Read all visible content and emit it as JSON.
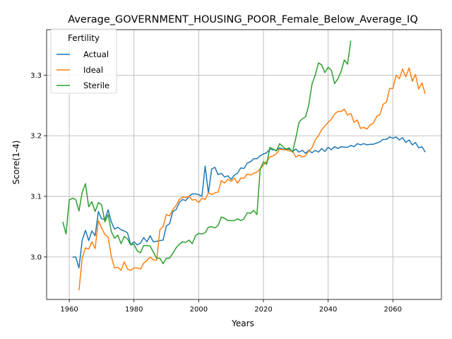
{
  "chart_data": {
    "type": "line",
    "title": "Average_GOVERNMENT_HOUSING_POOR_Female_Below_Average_IQ",
    "xlabel": "Years",
    "ylabel": "Score(1-4)",
    "xlim": [
      1953,
      2075
    ],
    "ylim": [
      2.93,
      3.375
    ],
    "xticks": [
      1960,
      1980,
      2000,
      2020,
      2040,
      2060
    ],
    "yticks": [
      3.0,
      3.1,
      3.2,
      3.3
    ],
    "xtick_labels": [
      "1960",
      "1980",
      "2000",
      "2020",
      "2040",
      "2060"
    ],
    "ytick_labels": [
      "3.0",
      "3.1",
      "3.2",
      "3.3"
    ],
    "grid": true,
    "legend": {
      "title": "Fertility",
      "placement": "top-left"
    },
    "series": [
      {
        "name": "Actual",
        "color": "#1f77b4",
        "points": [
          [
            1961,
            3.0
          ],
          [
            1962,
            3.0
          ],
          [
            1963,
            2.982
          ],
          [
            1964,
            3.028
          ],
          [
            1965,
            3.044
          ],
          [
            1966,
            3.027
          ],
          [
            1967,
            3.043
          ],
          [
            1968,
            3.035
          ],
          [
            1969,
            3.075
          ],
          [
            1970,
            3.063
          ],
          [
            1971,
            3.062
          ],
          [
            1972,
            3.078
          ],
          [
            1973,
            3.058
          ],
          [
            1974,
            3.046
          ],
          [
            1975,
            3.049
          ],
          [
            1976,
            3.045
          ],
          [
            1977,
            3.043
          ],
          [
            1978,
            3.04
          ],
          [
            1979,
            3.02
          ],
          [
            1980,
            3.025
          ],
          [
            1981,
            3.02
          ],
          [
            1982,
            3.023
          ],
          [
            1983,
            3.032
          ],
          [
            1984,
            3.025
          ],
          [
            1985,
            3.035
          ],
          [
            1986,
            3.025
          ],
          [
            1987,
            3.026
          ],
          [
            1988,
            3.027
          ],
          [
            1989,
            3.028
          ],
          [
            1990,
            3.051
          ],
          [
            1991,
            3.055
          ],
          [
            1992,
            3.075
          ],
          [
            1993,
            3.078
          ],
          [
            1994,
            3.09
          ],
          [
            1995,
            3.095
          ],
          [
            1996,
            3.093
          ],
          [
            1997,
            3.1
          ],
          [
            1998,
            3.104
          ],
          [
            1999,
            3.104
          ],
          [
            2000,
            3.103
          ],
          [
            2001,
            3.1
          ],
          [
            2002,
            3.15
          ],
          [
            2003,
            3.105
          ],
          [
            2004,
            3.145
          ],
          [
            2005,
            3.148
          ],
          [
            2006,
            3.136
          ],
          [
            2007,
            3.138
          ],
          [
            2008,
            3.132
          ],
          [
            2009,
            3.134
          ],
          [
            2010,
            3.128
          ],
          [
            2011,
            3.135
          ],
          [
            2012,
            3.138
          ],
          [
            2013,
            3.147
          ],
          [
            2014,
            3.146
          ],
          [
            2015,
            3.155
          ],
          [
            2016,
            3.157
          ],
          [
            2017,
            3.162
          ],
          [
            2018,
            3.162
          ],
          [
            2019,
            3.167
          ],
          [
            2020,
            3.17
          ],
          [
            2021,
            3.172
          ],
          [
            2022,
            3.178
          ],
          [
            2023,
            3.177
          ],
          [
            2024,
            3.176
          ],
          [
            2025,
            3.18
          ],
          [
            2026,
            3.178
          ],
          [
            2027,
            3.178
          ],
          [
            2028,
            3.178
          ],
          [
            2029,
            3.174
          ],
          [
            2030,
            3.178
          ],
          [
            2031,
            3.173
          ],
          [
            2032,
            3.176
          ],
          [
            2033,
            3.171
          ],
          [
            2034,
            3.176
          ],
          [
            2035,
            3.172
          ],
          [
            2036,
            3.176
          ],
          [
            2037,
            3.173
          ],
          [
            2038,
            3.179
          ],
          [
            2039,
            3.174
          ],
          [
            2040,
            3.181
          ],
          [
            2041,
            3.177
          ],
          [
            2042,
            3.182
          ],
          [
            2043,
            3.179
          ],
          [
            2044,
            3.182
          ],
          [
            2045,
            3.181
          ],
          [
            2046,
            3.181
          ],
          [
            2047,
            3.184
          ],
          [
            2048,
            3.182
          ],
          [
            2049,
            3.187
          ],
          [
            2050,
            3.185
          ],
          [
            2051,
            3.187
          ],
          [
            2052,
            3.185
          ],
          [
            2053,
            3.186
          ],
          [
            2054,
            3.186
          ],
          [
            2055,
            3.188
          ],
          [
            2056,
            3.19
          ],
          [
            2057,
            3.194
          ],
          [
            2058,
            3.194
          ],
          [
            2059,
            3.198
          ],
          [
            2060,
            3.196
          ],
          [
            2061,
            3.198
          ],
          [
            2062,
            3.193
          ],
          [
            2063,
            3.197
          ],
          [
            2064,
            3.189
          ],
          [
            2065,
            3.193
          ],
          [
            2066,
            3.185
          ],
          [
            2067,
            3.189
          ],
          [
            2068,
            3.18
          ],
          [
            2069,
            3.182
          ],
          [
            2070,
            3.173
          ]
        ]
      },
      {
        "name": "Ideal",
        "color": "#ff7f0e",
        "points": [
          [
            1963,
            2.945
          ],
          [
            1964,
            2.998
          ],
          [
            1965,
            3.015
          ],
          [
            1966,
            3.013
          ],
          [
            1967,
            3.025
          ],
          [
            1968,
            3.014
          ],
          [
            1969,
            3.06
          ],
          [
            1970,
            3.048
          ],
          [
            1971,
            3.037
          ],
          [
            1972,
            3.033
          ],
          [
            1973,
            3.001
          ],
          [
            1974,
            2.982
          ],
          [
            1975,
            2.983
          ],
          [
            1976,
            2.978
          ],
          [
            1977,
            2.992
          ],
          [
            1978,
            2.98
          ],
          [
            1979,
            2.978
          ],
          [
            1980,
            2.982
          ],
          [
            1981,
            2.982
          ],
          [
            1982,
            2.98
          ],
          [
            1983,
            2.99
          ],
          [
            1984,
            2.994
          ],
          [
            1985,
            3.0
          ],
          [
            1986,
            2.995
          ],
          [
            1987,
            2.995
          ],
          [
            1988,
            3.045
          ],
          [
            1989,
            3.05
          ],
          [
            1990,
            3.07
          ],
          [
            1991,
            3.068
          ],
          [
            1992,
            3.078
          ],
          [
            1993,
            3.085
          ],
          [
            1994,
            3.095
          ],
          [
            1995,
            3.099
          ],
          [
            1996,
            3.098
          ],
          [
            1997,
            3.1
          ],
          [
            1998,
            3.094
          ],
          [
            1999,
            3.095
          ],
          [
            2000,
            3.09
          ],
          [
            2001,
            3.097
          ],
          [
            2002,
            3.095
          ],
          [
            2003,
            3.106
          ],
          [
            2004,
            3.103
          ],
          [
            2005,
            3.106
          ],
          [
            2006,
            3.107
          ],
          [
            2007,
            3.126
          ],
          [
            2008,
            3.122
          ],
          [
            2009,
            3.128
          ],
          [
            2010,
            3.125
          ],
          [
            2011,
            3.13
          ],
          [
            2012,
            3.122
          ],
          [
            2013,
            3.13
          ],
          [
            2014,
            3.13
          ],
          [
            2015,
            3.137
          ],
          [
            2016,
            3.135
          ],
          [
            2017,
            3.138
          ],
          [
            2018,
            3.14
          ],
          [
            2019,
            3.145
          ],
          [
            2020,
            3.152
          ],
          [
            2021,
            3.158
          ],
          [
            2022,
            3.165
          ],
          [
            2023,
            3.167
          ],
          [
            2024,
            3.17
          ],
          [
            2025,
            3.178
          ],
          [
            2026,
            3.177
          ],
          [
            2027,
            3.177
          ],
          [
            2028,
            3.175
          ],
          [
            2029,
            3.175
          ],
          [
            2030,
            3.165
          ],
          [
            2031,
            3.168
          ],
          [
            2032,
            3.165
          ],
          [
            2033,
            3.167
          ],
          [
            2034,
            3.175
          ],
          [
            2035,
            3.18
          ],
          [
            2036,
            3.193
          ],
          [
            2037,
            3.2
          ],
          [
            2038,
            3.21
          ],
          [
            2039,
            3.216
          ],
          [
            2040,
            3.222
          ],
          [
            2041,
            3.227
          ],
          [
            2042,
            3.236
          ],
          [
            2043,
            3.24
          ],
          [
            2044,
            3.24
          ],
          [
            2045,
            3.244
          ],
          [
            2046,
            3.234
          ],
          [
            2047,
            3.237
          ],
          [
            2048,
            3.222
          ],
          [
            2049,
            3.226
          ],
          [
            2050,
            3.212
          ],
          [
            2051,
            3.214
          ],
          [
            2052,
            3.211
          ],
          [
            2053,
            3.218
          ],
          [
            2054,
            3.221
          ],
          [
            2055,
            3.232
          ],
          [
            2056,
            3.235
          ],
          [
            2057,
            3.252
          ],
          [
            2058,
            3.255
          ],
          [
            2059,
            3.278
          ],
          [
            2060,
            3.278
          ],
          [
            2061,
            3.3
          ],
          [
            2062,
            3.294
          ],
          [
            2063,
            3.31
          ],
          [
            2064,
            3.297
          ],
          [
            2065,
            3.312
          ],
          [
            2066,
            3.29
          ],
          [
            2067,
            3.301
          ],
          [
            2068,
            3.277
          ],
          [
            2069,
            3.287
          ],
          [
            2070,
            3.269
          ]
        ]
      },
      {
        "name": "Sterile",
        "color": "#2ca02c",
        "points": [
          [
            1958,
            3.058
          ],
          [
            1959,
            3.038
          ],
          [
            1960,
            3.094
          ],
          [
            1961,
            3.097
          ],
          [
            1962,
            3.095
          ],
          [
            1963,
            3.076
          ],
          [
            1964,
            3.107
          ],
          [
            1965,
            3.121
          ],
          [
            1966,
            3.083
          ],
          [
            1967,
            3.091
          ],
          [
            1968,
            3.075
          ],
          [
            1969,
            3.09
          ],
          [
            1970,
            3.086
          ],
          [
            1971,
            3.058
          ],
          [
            1972,
            3.07
          ],
          [
            1973,
            3.042
          ],
          [
            1974,
            3.031
          ],
          [
            1975,
            3.036
          ],
          [
            1976,
            3.022
          ],
          [
            1977,
            3.034
          ],
          [
            1978,
            3.03
          ],
          [
            1979,
            3.02
          ],
          [
            1980,
            3.021
          ],
          [
            1981,
            3.01
          ],
          [
            1982,
            3.007
          ],
          [
            1983,
            3.019
          ],
          [
            1984,
            3.019
          ],
          [
            1985,
            3.018
          ],
          [
            1986,
            3.008
          ],
          [
            1987,
            2.998
          ],
          [
            1988,
            2.998
          ],
          [
            1989,
            2.989
          ],
          [
            1990,
            2.998
          ],
          [
            1991,
            2.998
          ],
          [
            1992,
            3.006
          ],
          [
            1993,
            3.015
          ],
          [
            1994,
            3.021
          ],
          [
            1995,
            3.025
          ],
          [
            1996,
            3.024
          ],
          [
            1997,
            3.028
          ],
          [
            1998,
            3.022
          ],
          [
            1999,
            3.035
          ],
          [
            2000,
            3.039
          ],
          [
            2001,
            3.038
          ],
          [
            2002,
            3.04
          ],
          [
            2003,
            3.049
          ],
          [
            2004,
            3.05
          ],
          [
            2005,
            3.048
          ],
          [
            2006,
            3.052
          ],
          [
            2007,
            3.066
          ],
          [
            2008,
            3.064
          ],
          [
            2009,
            3.06
          ],
          [
            2010,
            3.06
          ],
          [
            2011,
            3.06
          ],
          [
            2012,
            3.063
          ],
          [
            2013,
            3.06
          ],
          [
            2014,
            3.063
          ],
          [
            2015,
            3.073
          ],
          [
            2016,
            3.072
          ],
          [
            2017,
            3.077
          ],
          [
            2018,
            3.07
          ],
          [
            2019,
            3.145
          ],
          [
            2020,
            3.157
          ],
          [
            2021,
            3.153
          ],
          [
            2022,
            3.181
          ],
          [
            2023,
            3.178
          ],
          [
            2024,
            3.175
          ],
          [
            2025,
            3.187
          ],
          [
            2026,
            3.182
          ],
          [
            2027,
            3.178
          ],
          [
            2028,
            3.18
          ],
          [
            2029,
            3.173
          ],
          [
            2030,
            3.196
          ],
          [
            2031,
            3.222
          ],
          [
            2032,
            3.228
          ],
          [
            2033,
            3.231
          ],
          [
            2034,
            3.25
          ],
          [
            2035,
            3.285
          ],
          [
            2036,
            3.3
          ],
          [
            2037,
            3.32
          ],
          [
            2038,
            3.317
          ],
          [
            2039,
            3.304
          ],
          [
            2040,
            3.313
          ],
          [
            2041,
            3.308
          ],
          [
            2042,
            3.286
          ],
          [
            2043,
            3.294
          ],
          [
            2044,
            3.306
          ],
          [
            2045,
            3.325
          ],
          [
            2046,
            3.318
          ],
          [
            2047,
            3.357
          ]
        ]
      }
    ]
  }
}
